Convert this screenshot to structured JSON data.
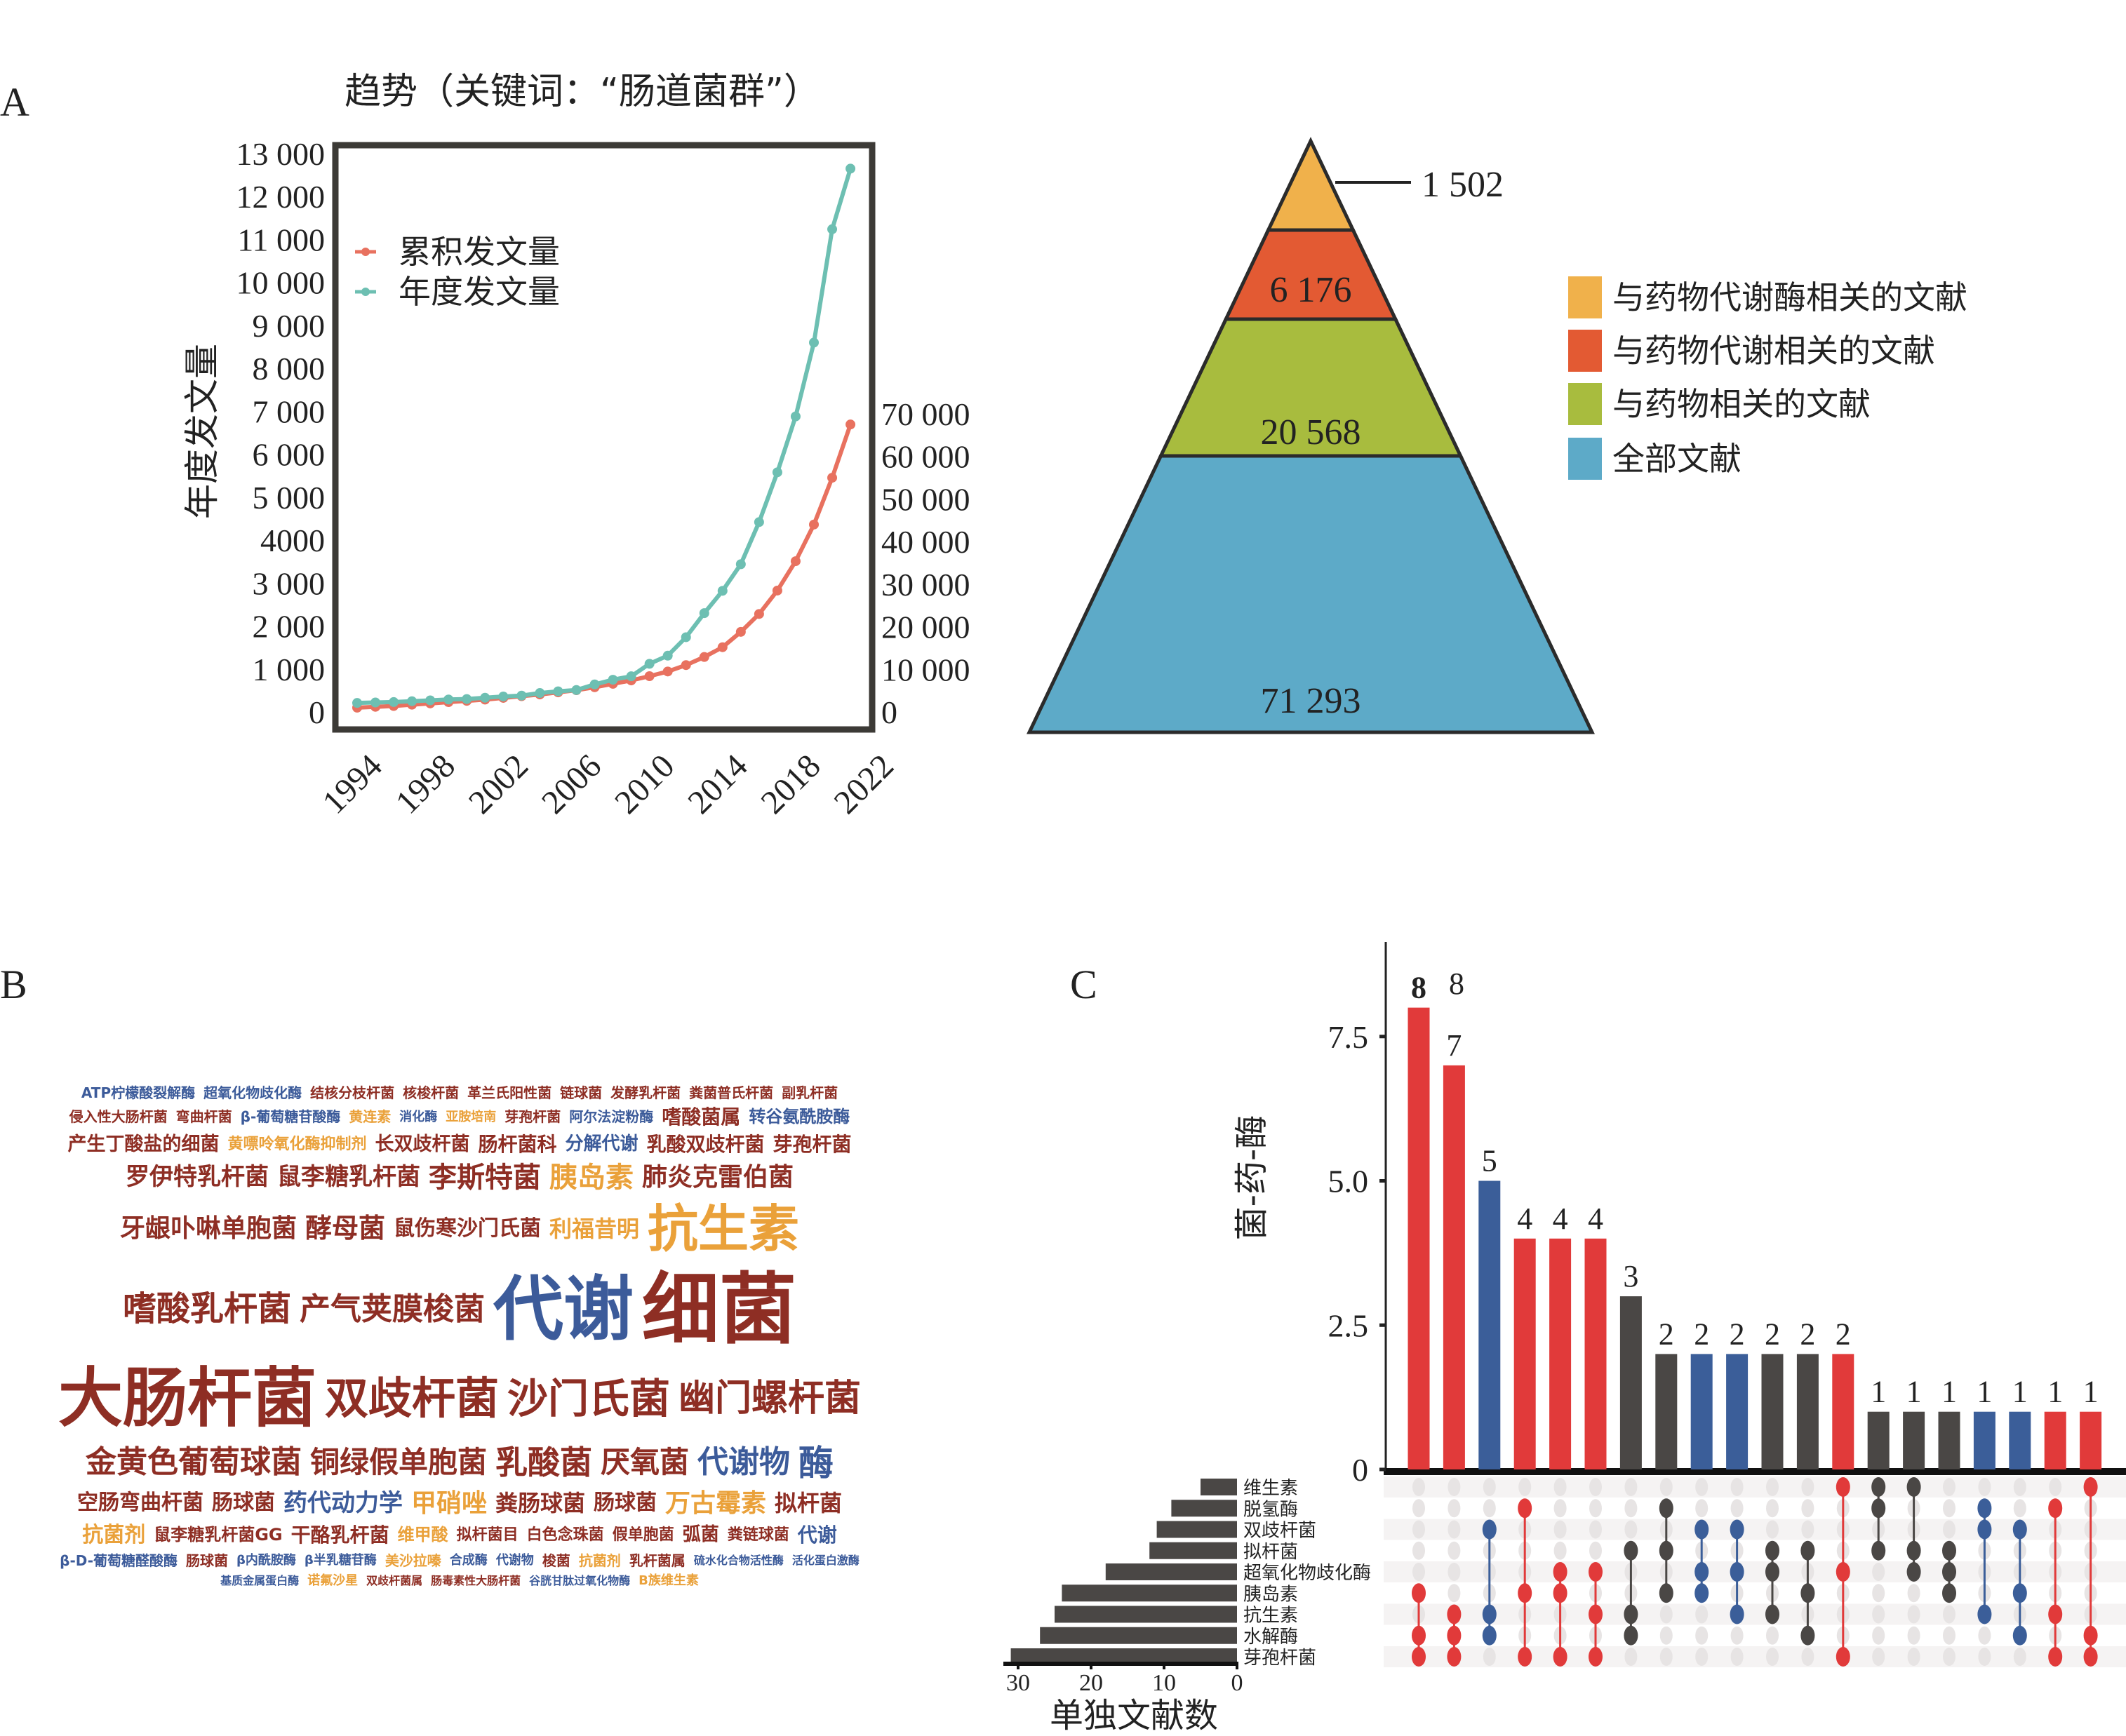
{
  "panel_labels": {
    "a": "A",
    "b": "B",
    "c": "C"
  },
  "chart_data": [
    {
      "type": "line",
      "title": "趋势（关键词：“肠道菌群”）",
      "ylabel": "年度发文量",
      "xlabel": "",
      "x": [
        1993,
        1994,
        1995,
        1996,
        1997,
        1998,
        1999,
        2000,
        2001,
        2002,
        2003,
        2004,
        2005,
        2006,
        2007,
        2008,
        2009,
        2010,
        2011,
        2012,
        2013,
        2014,
        2015,
        2016,
        2017,
        2018,
        2019,
        2020
      ],
      "xticks": [
        "1994",
        "1998",
        "2002",
        "2006",
        "2010",
        "2014",
        "2018",
        "2022"
      ],
      "yticks_left": [
        "13 000",
        "12 000",
        "11 000",
        "10 000",
        "9 000",
        "8 000",
        "7 000",
        "6 000",
        "5 000",
        "4000",
        "3 000",
        "2 000",
        "1 000",
        "0"
      ],
      "yticks_right": [
        "70 000",
        "60 000",
        "50 000",
        "40 000",
        "30 000",
        "20 000",
        "10 000",
        "0"
      ],
      "ylim_left": [
        0,
        13200
      ],
      "ylim_right": [
        0,
        132000
      ],
      "grid": false,
      "legend_position": "upper-left",
      "series": [
        {
          "name": "累积发文量",
          "axis": "right",
          "color": "#E8715F",
          "values": [
            1000,
            1200,
            1400,
            1700,
            2000,
            2300,
            2600,
            2900,
            3300,
            3700,
            4100,
            4600,
            5100,
            5800,
            6600,
            7400,
            8400,
            9500,
            11000,
            12900,
            15200,
            18800,
            23000,
            28500,
            35400,
            44000,
            55000,
            67500
          ]
        },
        {
          "name": "年度发文量",
          "axis": "left",
          "color": "#6DBFB2",
          "values": [
            210,
            220,
            230,
            250,
            270,
            290,
            300,
            330,
            360,
            380,
            440,
            480,
            510,
            640,
            750,
            830,
            1120,
            1310,
            1740,
            2300,
            2820,
            3440,
            4420,
            5580,
            6880,
            8600,
            11240,
            12650
          ]
        }
      ]
    },
    {
      "type": "pyramid",
      "levels": [
        {
          "label": "与药物代谢酶相关的文献",
          "value": "1 502",
          "color": "#F0B14B"
        },
        {
          "label": "与药物代谢相关的文献",
          "value": "6 176",
          "color": "#E35A33"
        },
        {
          "label": "与药物相关的文献",
          "value": "20 568",
          "color": "#A8BC3E"
        },
        {
          "label": "全部文献",
          "value": "71 293",
          "color": "#5DAAC8"
        }
      ],
      "legend_position": "right"
    },
    {
      "type": "wordcloud",
      "colors": {
        "red": "#8E2E24",
        "blue": "#3C5B9A",
        "orange": "#EAA13A"
      },
      "words": [
        {
          "text": "大肠杆菌",
          "color": "red"
        },
        {
          "text": "细菌",
          "color": "red"
        },
        {
          "text": "代谢",
          "color": "blue"
        },
        {
          "text": "抗生素",
          "color": "orange"
        },
        {
          "text": "双歧杆菌",
          "color": "red"
        },
        {
          "text": "沙门氏菌",
          "color": "red"
        },
        {
          "text": "幽门螺杆菌",
          "color": "red"
        },
        {
          "text": "金黄色葡萄球菌",
          "color": "red"
        },
        {
          "text": "嗜酸乳杆菌",
          "color": "red"
        },
        {
          "text": "产气荚膜梭菌",
          "color": "red"
        },
        {
          "text": "铜绿假单胞菌",
          "color": "red"
        },
        {
          "text": "乳酸菌",
          "color": "red"
        },
        {
          "text": "罗伊特乳杆菌",
          "color": "red"
        },
        {
          "text": "厌氧菌",
          "color": "red"
        },
        {
          "text": "鼠李糖乳杆菌",
          "color": "red"
        },
        {
          "text": "李斯特菌",
          "color": "red"
        },
        {
          "text": "代谢物",
          "color": "blue"
        },
        {
          "text": "胰岛素",
          "color": "orange"
        },
        {
          "text": "肺炎克雷伯菌",
          "color": "red"
        },
        {
          "text": "牙龈卟啉单胞菌",
          "color": "red"
        },
        {
          "text": "酵母菌",
          "color": "red"
        },
        {
          "text": "鼠伤寒沙门氏菌",
          "color": "red"
        },
        {
          "text": "利福昔明",
          "color": "orange"
        },
        {
          "text": "嗜酸菌属",
          "color": "red"
        },
        {
          "text": "空肠弯曲杆菌",
          "color": "red"
        },
        {
          "text": "转谷氨酰胺酶",
          "color": "blue"
        },
        {
          "text": "肠球菌",
          "color": "red"
        },
        {
          "text": "产生丁酸盐的细菌",
          "color": "red"
        },
        {
          "text": "黄嘌呤氧化酶抑制剂",
          "color": "orange"
        },
        {
          "text": "长双歧杆菌",
          "color": "red"
        },
        {
          "text": "药代动力学",
          "color": "blue"
        },
        {
          "text": "甲硝唑",
          "color": "orange"
        },
        {
          "text": "酶",
          "color": "blue"
        },
        {
          "text": "肠杆菌科",
          "color": "red"
        },
        {
          "text": "粪肠球菌",
          "color": "red"
        },
        {
          "text": "肠球菌",
          "color": "red"
        },
        {
          "text": "万古霉素",
          "color": "orange"
        },
        {
          "text": "分解代谢",
          "color": "blue"
        },
        {
          "text": "乳酸双歧杆菌",
          "color": "red"
        },
        {
          "text": "芽孢杆菌",
          "color": "red"
        },
        {
          "text": "鼠李糖乳杆菌GG",
          "color": "red"
        },
        {
          "text": "ATP柠檬酸裂解酶",
          "color": "blue"
        },
        {
          "text": "超氧化物歧化酶",
          "color": "blue"
        },
        {
          "text": "拟杆菌",
          "color": "red"
        },
        {
          "text": "干酪乳杆菌",
          "color": "red"
        },
        {
          "text": "结核分枝杆菌",
          "color": "red"
        },
        {
          "text": "维甲酸",
          "color": "orange"
        },
        {
          "text": "抗菌剂",
          "color": "orange"
        },
        {
          "text": "核梭杆菌",
          "color": "red"
        },
        {
          "text": "拟杆菌目",
          "color": "red"
        },
        {
          "text": "革兰氏阳性菌",
          "color": "red"
        },
        {
          "text": "链球菌",
          "color": "red"
        },
        {
          "text": "白色念珠菌",
          "color": "red"
        },
        {
          "text": "假单胞菌",
          "color": "red"
        },
        {
          "text": "发酵乳杆菌",
          "color": "red"
        },
        {
          "text": "粪菌普氏杆菌",
          "color": "red"
        },
        {
          "text": "弧菌",
          "color": "red"
        },
        {
          "text": "副乳杆菌",
          "color": "red"
        },
        {
          "text": "侵入性大肠杆菌",
          "color": "red"
        },
        {
          "text": "弯曲杆菌",
          "color": "red"
        },
        {
          "text": "粪链球菌",
          "color": "red"
        },
        {
          "text": "β-葡萄糖苷酸酶",
          "color": "blue"
        },
        {
          "text": "黄连素",
          "color": "orange"
        },
        {
          "text": "消化酶",
          "color": "blue"
        },
        {
          "text": "亚胺培南",
          "color": "orange"
        },
        {
          "text": "代谢",
          "color": "blue"
        },
        {
          "text": "芽孢杆菌",
          "color": "red"
        },
        {
          "text": "阿尔法淀粉酶",
          "color": "blue"
        },
        {
          "text": "β-D-葡萄糖醛酸酶",
          "color": "blue"
        },
        {
          "text": "肠球菌",
          "color": "red"
        },
        {
          "text": "β内酰胺酶",
          "color": "blue"
        },
        {
          "text": "β半乳糖苷酶",
          "color": "blue"
        },
        {
          "text": "美沙拉嗪",
          "color": "orange"
        },
        {
          "text": "合成酶",
          "color": "blue"
        },
        {
          "text": "代谢物",
          "color": "blue"
        },
        {
          "text": "梭菌",
          "color": "red"
        },
        {
          "text": "抗菌剂",
          "color": "orange"
        },
        {
          "text": "乳杆菌属",
          "color": "red"
        },
        {
          "text": "硫水化合物活性酶",
          "color": "blue"
        },
        {
          "text": "活化蛋白激酶",
          "color": "blue"
        },
        {
          "text": "基质金属蛋白酶",
          "color": "blue"
        },
        {
          "text": "诺氟沙星",
          "color": "orange"
        },
        {
          "text": "双歧杆菌属",
          "color": "red"
        },
        {
          "text": "肠毒素性大肠杆菌",
          "color": "red"
        },
        {
          "text": "谷胱甘肽过氧化物酶",
          "color": "blue"
        },
        {
          "text": "B族维生素",
          "color": "orange"
        }
      ]
    },
    {
      "type": "upset",
      "ylabel": "菌-药-酶",
      "yticks": [
        "0",
        "2.5",
        "5.0",
        "7.5"
      ],
      "ylim": [
        0,
        9.1
      ],
      "set_size_xlabel": "单独文献数",
      "set_size_ticks": [
        "30",
        "20",
        "10",
        "0"
      ],
      "set_size_xlim": [
        0,
        30
      ],
      "colors": {
        "red": "#E13A3A",
        "blue": "#3B5E99",
        "dark": "#4A4745",
        "inactive": "#E7E4E4"
      },
      "sets": [
        {
          "name": "维生素",
          "size": 5
        },
        {
          "name": "脱氢酶",
          "size": 9
        },
        {
          "name": "双歧杆菌",
          "size": 11
        },
        {
          "name": "拟杆菌",
          "size": 12
        },
        {
          "name": "超氧化物歧化酶",
          "size": 18
        },
        {
          "name": "胰岛素",
          "size": 24
        },
        {
          "name": "抗生素",
          "size": 25
        },
        {
          "name": "水解酶",
          "size": 27
        },
        {
          "name": "芽孢杆菌",
          "size": 31
        }
      ],
      "intersections": [
        {
          "count": 8,
          "label": "8",
          "color": "red",
          "sets": [
            5,
            7,
            8
          ]
        },
        {
          "count": 7,
          "label": "7",
          "color": "red",
          "sets": [
            6,
            7,
            8
          ]
        },
        {
          "count": 5,
          "label": "5",
          "color": "blue",
          "sets": [
            2,
            6,
            7
          ]
        },
        {
          "count": 4,
          "label": "4",
          "color": "red",
          "sets": [
            1,
            5,
            8
          ]
        },
        {
          "count": 4,
          "label": "4",
          "color": "red",
          "sets": [
            4,
            5,
            8
          ]
        },
        {
          "count": 4,
          "label": "4",
          "color": "red",
          "sets": [
            4,
            6,
            8
          ]
        },
        {
          "count": 3,
          "label": "3",
          "color": "dark",
          "sets": [
            3,
            6,
            7
          ]
        },
        {
          "count": 2,
          "label": "2",
          "color": "dark",
          "sets": [
            1,
            3,
            5
          ]
        },
        {
          "count": 2,
          "label": "2",
          "color": "blue",
          "sets": [
            2,
            4,
            5
          ]
        },
        {
          "count": 2,
          "label": "2",
          "color": "blue",
          "sets": [
            2,
            4,
            6
          ]
        },
        {
          "count": 2,
          "label": "2",
          "color": "dark",
          "sets": [
            3,
            4,
            6
          ]
        },
        {
          "count": 2,
          "label": "2",
          "color": "dark",
          "sets": [
            3,
            5,
            7
          ]
        },
        {
          "count": 2,
          "label": "2",
          "color": "red",
          "sets": [
            0,
            4,
            8
          ]
        },
        {
          "count": 1,
          "label": "1",
          "color": "dark",
          "sets": [
            0,
            1,
            3
          ]
        },
        {
          "count": 1,
          "label": "1",
          "color": "dark",
          "sets": [
            0,
            3,
            4
          ]
        },
        {
          "count": 1,
          "label": "1",
          "color": "dark",
          "sets": [
            3,
            4,
            5
          ]
        },
        {
          "count": 1,
          "label": "1",
          "color": "blue",
          "sets": [
            1,
            2,
            6
          ]
        },
        {
          "count": 1,
          "label": "1",
          "color": "blue",
          "sets": [
            2,
            5,
            7
          ]
        },
        {
          "count": 1,
          "label": "1",
          "color": "red",
          "sets": [
            1,
            6,
            8
          ]
        },
        {
          "count": 1,
          "label": "1",
          "color": "red",
          "sets": [
            0,
            7,
            8
          ]
        }
      ],
      "extra_label": "8"
    }
  ]
}
